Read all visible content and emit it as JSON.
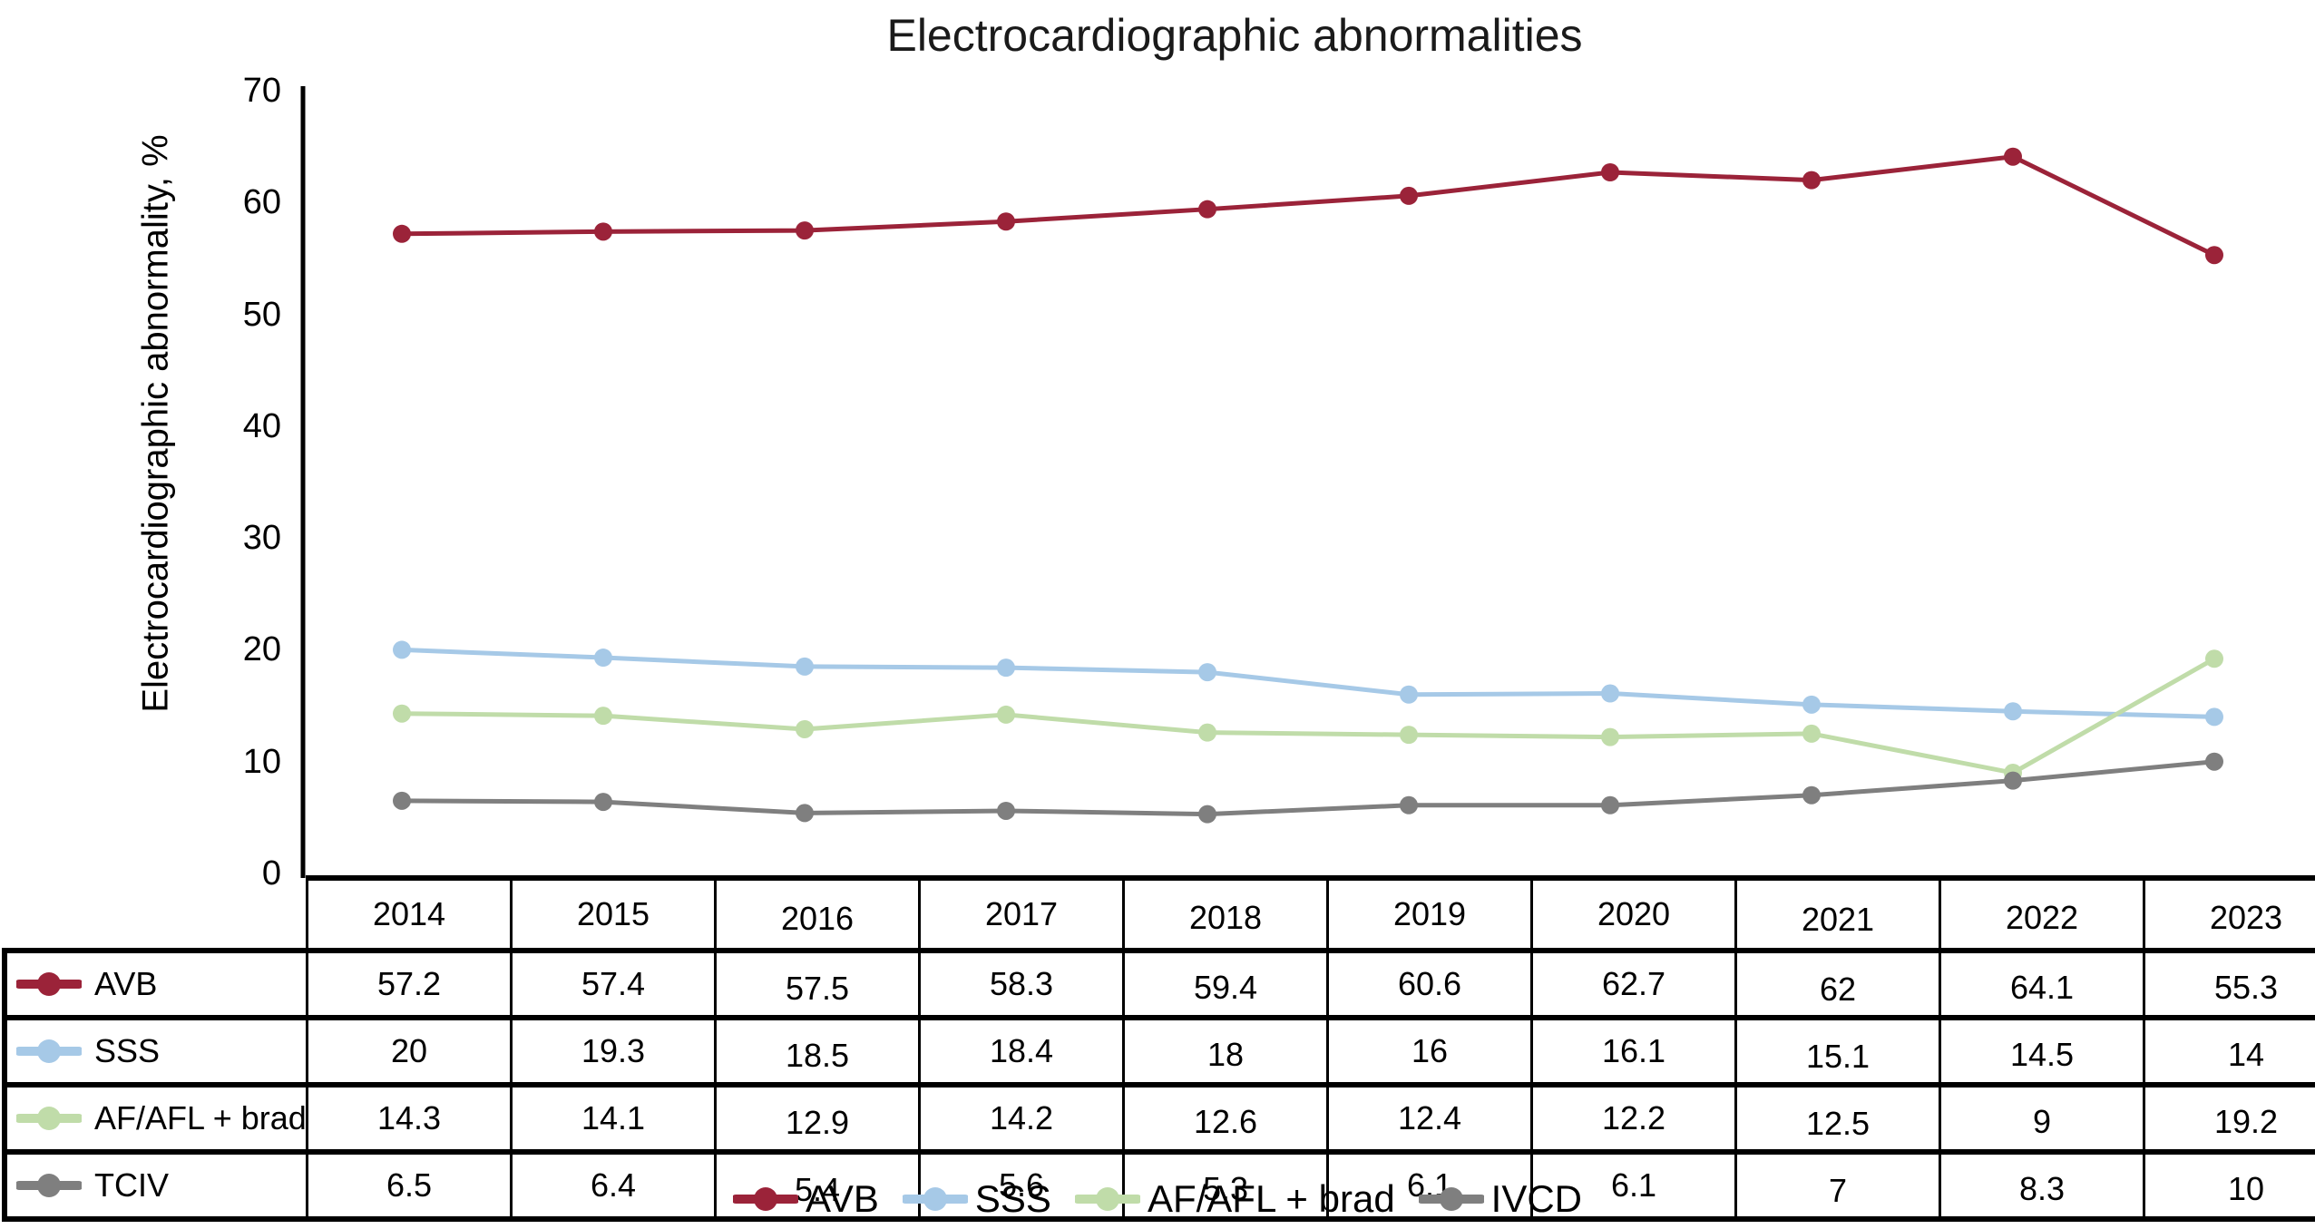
{
  "title": "Electrocardiographic abnormalities",
  "y_axis": {
    "title": "Electrocardiographic abnormality, %",
    "ticks": [
      "0",
      "10",
      "20",
      "30",
      "40",
      "50",
      "60",
      "70"
    ]
  },
  "chart_data": {
    "type": "line",
    "categories": [
      "2014",
      "2015",
      "2016",
      "2017",
      "2018",
      "2019",
      "2020",
      "2021",
      "2022",
      "2023"
    ],
    "ylim": [
      0,
      70
    ],
    "grid": false,
    "legend_position": "bottom",
    "marker": "circle",
    "series": [
      {
        "name": "AVB",
        "table_label": "AVB",
        "legend_label": "AVB",
        "color": "#9b2339",
        "values": [
          57.2,
          57.4,
          57.5,
          58.3,
          59.4,
          60.6,
          62.7,
          62,
          64.1,
          55.3
        ]
      },
      {
        "name": "SSS",
        "table_label": "SSS",
        "legend_label": "SSS",
        "color": "#a6c9e7",
        "values": [
          20,
          19.3,
          18.5,
          18.4,
          18,
          16,
          16.1,
          15.1,
          14.5,
          14
        ]
      },
      {
        "name": "AF/AFL + brad",
        "table_label": "AF/AFL + brad",
        "legend_label": "AF/AFL + brad",
        "color": "#c0dca9",
        "values": [
          14.3,
          14.1,
          12.9,
          14.2,
          12.6,
          12.4,
          12.2,
          12.5,
          9,
          19.2
        ]
      },
      {
        "name": "IVCD",
        "table_label": "TCIV",
        "legend_label": "IVCD",
        "color": "#7f7f7f",
        "values": [
          6.5,
          6.4,
          5.4,
          5.6,
          5.3,
          6.1,
          6.1,
          7,
          8.3,
          10
        ]
      }
    ]
  },
  "axis_color": "#000000"
}
